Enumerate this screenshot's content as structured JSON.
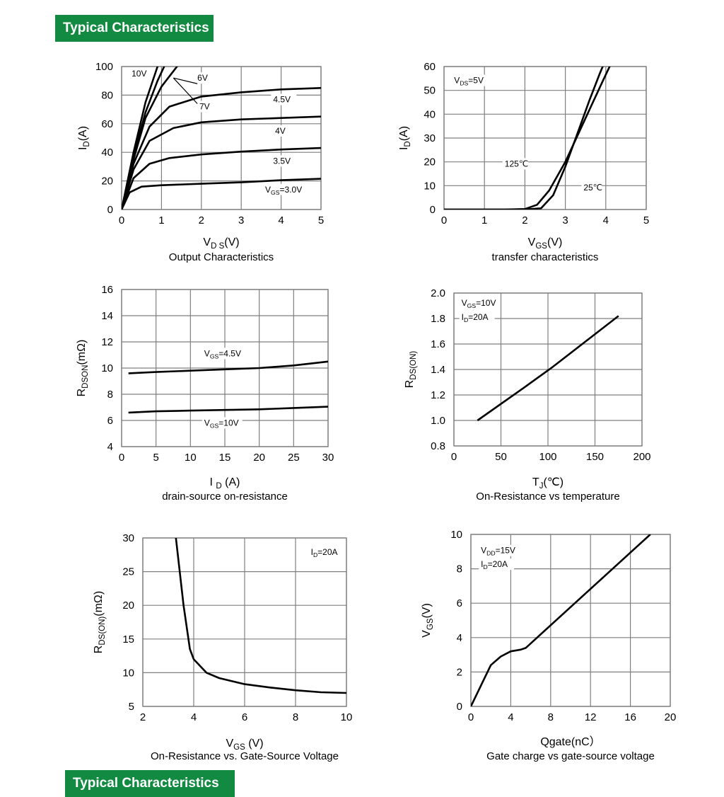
{
  "page": {
    "banner_top": "Typical Characteristics",
    "banner_bottom": "Typical Characteristics"
  },
  "colors": {
    "banner": "#138a41",
    "grid": "#7f7f7f",
    "line": "#000000"
  },
  "chart_data": [
    {
      "id": "c1",
      "type": "line",
      "xlim": [
        0,
        5
      ],
      "ylim": [
        0,
        100
      ],
      "xticks": [
        "0",
        "1",
        "2",
        "3",
        "4",
        "5"
      ],
      "yticks": [
        "0",
        "20",
        "40",
        "60",
        "80",
        "100"
      ],
      "xlabel": "VD S(V)",
      "ylabel": "ID (A)",
      "caption": "Output Characteristics",
      "grid": true,
      "series": [
        {
          "name": "10V",
          "points": [
            [
              0,
              0
            ],
            [
              0.3,
              40
            ],
            [
              0.6,
              75
            ],
            [
              0.9,
              100
            ],
            [
              1.3,
              130
            ]
          ]
        },
        {
          "name": "7V",
          "points": [
            [
              0,
              0
            ],
            [
              0.3,
              37
            ],
            [
              0.6,
              68
            ],
            [
              0.9,
              90
            ],
            [
              1.2,
              108
            ]
          ]
        },
        {
          "name": "6V",
          "points": [
            [
              0,
              0
            ],
            [
              0.3,
              35
            ],
            [
              0.6,
              64
            ],
            [
              1.0,
              86
            ],
            [
              1.5,
              104
            ]
          ]
        },
        {
          "name": "4.5V",
          "points": [
            [
              0,
              0
            ],
            [
              0.3,
              32
            ],
            [
              0.7,
              58
            ],
            [
              1.2,
              72
            ],
            [
              2,
              79
            ],
            [
              3,
              82
            ],
            [
              4,
              84
            ],
            [
              5,
              85
            ]
          ]
        },
        {
          "name": "4V",
          "points": [
            [
              0,
              0
            ],
            [
              0.3,
              28
            ],
            [
              0.7,
              48
            ],
            [
              1.3,
              57
            ],
            [
              2,
              61
            ],
            [
              3,
              63
            ],
            [
              4,
              64
            ],
            [
              5,
              65
            ]
          ]
        },
        {
          "name": "3.5V",
          "points": [
            [
              0,
              0
            ],
            [
              0.3,
              22
            ],
            [
              0.7,
              32
            ],
            [
              1.2,
              36
            ],
            [
              2,
              38.5
            ],
            [
              3,
              40.5
            ],
            [
              4,
              42
            ],
            [
              5,
              43
            ]
          ]
        },
        {
          "name": "VGS=3.0V",
          "points": [
            [
              0,
              0
            ],
            [
              0.2,
              12
            ],
            [
              0.5,
              16
            ],
            [
              1,
              17
            ],
            [
              2,
              18
            ],
            [
              3,
              19
            ],
            [
              4,
              20.5
            ],
            [
              5,
              21.5
            ]
          ]
        }
      ],
      "labels": [
        {
          "text": "10V",
          "x": 0.25,
          "y": 93
        },
        {
          "text": "6V",
          "x": 1.9,
          "y": 90
        },
        {
          "text": "7V",
          "x": 1.95,
          "y": 70
        },
        {
          "text": "4.5V",
          "x": 3.8,
          "y": 75
        },
        {
          "text": "4V",
          "x": 3.85,
          "y": 53
        },
        {
          "text": "3.5V",
          "x": 3.8,
          "y": 32
        },
        {
          "main": "V",
          "sub": "GS",
          "rest": "=3.0V",
          "x": 3.6,
          "y": 12
        }
      ]
    },
    {
      "id": "c2",
      "type": "line",
      "xlim": [
        0,
        5
      ],
      "ylim": [
        0,
        60
      ],
      "xticks": [
        "0",
        "1",
        "2",
        "3",
        "4",
        "5"
      ],
      "yticks": [
        "0",
        "10",
        "20",
        "30",
        "40",
        "50",
        "60"
      ],
      "xlabel": "VGS (V)",
      "ylabel": "ID (A)",
      "caption": "transfer characteristics",
      "grid": true,
      "series": [
        {
          "name": "125℃",
          "points": [
            [
              0,
              0
            ],
            [
              1.5,
              0
            ],
            [
              2,
              0.2
            ],
            [
              2.3,
              2
            ],
            [
              2.6,
              8
            ],
            [
              3,
              20
            ],
            [
              3.3,
              31
            ],
            [
              3.6,
              42
            ],
            [
              3.9,
              53
            ],
            [
              4.15,
              62
            ]
          ]
        },
        {
          "name": "25℃",
          "points": [
            [
              0,
              0
            ],
            [
              2,
              0
            ],
            [
              2.4,
              0.5
            ],
            [
              2.7,
              6
            ],
            [
              3,
              18
            ],
            [
              3.3,
              32
            ],
            [
              3.6,
              46
            ],
            [
              3.85,
              57
            ],
            [
              3.95,
              61
            ]
          ]
        }
      ],
      "labels": [
        {
          "main": "V",
          "sub": "DS",
          "rest": "=5V",
          "x": 0.25,
          "y": 53
        },
        {
          "text": "125℃",
          "x": 1.5,
          "y": 18
        },
        {
          "text": "25℃",
          "x": 3.45,
          "y": 8
        }
      ]
    },
    {
      "id": "c3",
      "type": "line",
      "xlim": [
        0,
        30
      ],
      "ylim": [
        4,
        16
      ],
      "xticks": [
        "0",
        "5",
        "10",
        "15",
        "20",
        "25",
        "30"
      ],
      "yticks": [
        "4",
        "6",
        "8",
        "10",
        "12",
        "14",
        "16"
      ],
      "xlabel": "I D (A)",
      "ylabel": "RDSON (mΩ)",
      "caption": "drain-source on-resistance",
      "grid": true,
      "series": [
        {
          "name": "VGS=4.5V",
          "points": [
            [
              1,
              9.6
            ],
            [
              5,
              9.7
            ],
            [
              10,
              9.8
            ],
            [
              15,
              9.9
            ],
            [
              20,
              10.0
            ],
            [
              25,
              10.2
            ],
            [
              30,
              10.5
            ]
          ]
        },
        {
          "name": "VGS=10V",
          "points": [
            [
              1,
              6.6
            ],
            [
              5,
              6.7
            ],
            [
              10,
              6.75
            ],
            [
              15,
              6.8
            ],
            [
              20,
              6.85
            ],
            [
              25,
              6.95
            ],
            [
              30,
              7.05
            ]
          ]
        }
      ],
      "labels": [
        {
          "main": "V",
          "sub": "GS",
          "rest": "=4.5V",
          "x": 12,
          "y": 10.9
        },
        {
          "main": "V",
          "sub": "GS",
          "rest": "=10V",
          "x": 12,
          "y": 5.6
        }
      ]
    },
    {
      "id": "c4",
      "type": "line",
      "xlim": [
        0,
        200
      ],
      "ylim": [
        0.8,
        2.0
      ],
      "xticks": [
        "0",
        "50",
        "100",
        "150",
        "200"
      ],
      "yticks": [
        "0.8",
        "1.0",
        "1.2",
        "1.4",
        "1.6",
        "1.8",
        "2.0"
      ],
      "xlabel": "TJ(℃)",
      "ylabel": "RDS(ON)",
      "caption": "On-Resistance vs temperature",
      "grid": true,
      "series": [
        {
          "name": "RDS(ON)",
          "points": [
            [
              25,
              1.0
            ],
            [
              75,
              1.26
            ],
            [
              105,
              1.42
            ],
            [
              175,
              1.82
            ]
          ]
        }
      ],
      "labels": [
        {
          "main": "V",
          "sub": "GS",
          "rest": "=10V",
          "x": 8,
          "y": 1.9
        },
        {
          "main": "I",
          "sub": "D",
          "rest": "=20A",
          "x": 8,
          "y": 1.79
        }
      ]
    },
    {
      "id": "c5",
      "type": "line",
      "xlim": [
        2,
        10
      ],
      "ylim": [
        5,
        30
      ],
      "xticks": [
        "2",
        "4",
        "6",
        "8",
        "10"
      ],
      "yticks": [
        "5",
        "10",
        "15",
        "20",
        "25",
        "30"
      ],
      "xlabel": "VGS (V)",
      "ylabel": "RDS(ON) (mΩ)",
      "caption": "On-Resistance vs. Gate-Source Voltage",
      "grid": true,
      "series": [
        {
          "name": "RDS(ON)",
          "points": [
            [
              3.3,
              30
            ],
            [
              3.6,
              20
            ],
            [
              3.85,
              13.5
            ],
            [
              4,
              12
            ],
            [
              4.5,
              10
            ],
            [
              5,
              9.2
            ],
            [
              6,
              8.3
            ],
            [
              7,
              7.8
            ],
            [
              8,
              7.4
            ],
            [
              9,
              7.1
            ],
            [
              10,
              7.0
            ]
          ]
        }
      ],
      "labels": [
        {
          "main": "I",
          "sub": "D",
          "rest": "=20A",
          "x": 8.6,
          "y": 27.5
        }
      ]
    },
    {
      "id": "c6",
      "type": "line",
      "xlim": [
        0,
        20
      ],
      "ylim": [
        0,
        10
      ],
      "xticks": [
        "0",
        "4",
        "8",
        "12",
        "16",
        "20"
      ],
      "yticks": [
        "0",
        "2",
        "4",
        "6",
        "8",
        "10"
      ],
      "xlabel": "Qgate(nC）",
      "ylabel": "VGS (V)",
      "caption": "Gate charge vs gate-source voltage",
      "grid": true,
      "series": [
        {
          "name": "VGS",
          "points": [
            [
              0,
              0
            ],
            [
              1,
              1.2
            ],
            [
              2,
              2.4
            ],
            [
              3,
              2.9
            ],
            [
              4,
              3.2
            ],
            [
              5,
              3.3
            ],
            [
              5.5,
              3.4
            ],
            [
              18,
              10
            ]
          ]
        }
      ],
      "labels": [
        {
          "main": "V",
          "sub": "DD",
          "rest": "=15V",
          "x": 1,
          "y": 8.9
        },
        {
          "main": "I",
          "sub": "D",
          "rest": "=20A",
          "x": 1,
          "y": 8.1
        }
      ]
    }
  ]
}
